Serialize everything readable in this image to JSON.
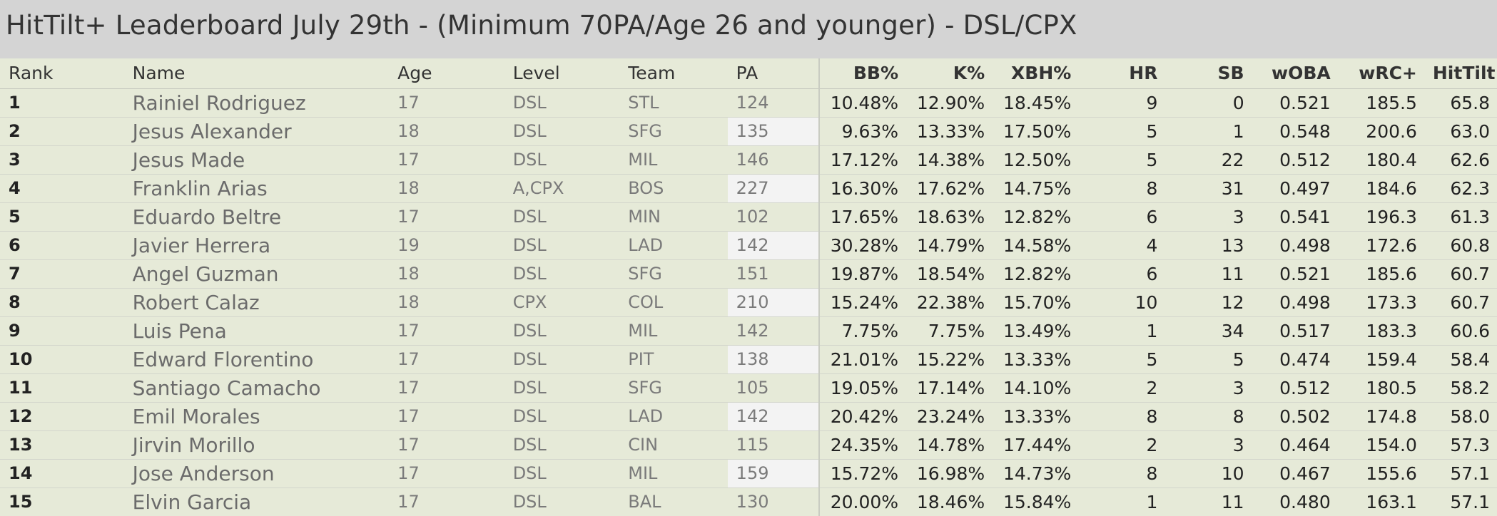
{
  "title": "HitTilt+ Leaderboard July 29th - (Minimum 70PA/Age 26 and younger) - DSL/CPX",
  "columns": {
    "rank": "Rank",
    "name": "Name",
    "age": "Age",
    "level": "Level",
    "team": "Team",
    "pa": "PA",
    "bb": "BB%",
    "k": "K%",
    "xbh": "XBH%",
    "hr": "HR",
    "sb": "SB",
    "woba": "wOBA",
    "wrc": "wRC+",
    "hittilt": "HitTilt+"
  },
  "rows": [
    {
      "rank": "1",
      "name": "Rainiel Rodriguez",
      "age": "17",
      "level": "DSL",
      "team": "STL",
      "pa": "124",
      "bb": "10.48%",
      "k": "12.90%",
      "xbh": "18.45%",
      "hr": "9",
      "sb": "0",
      "woba": "0.521",
      "wrc": "185.5",
      "hittilt": "65.8"
    },
    {
      "rank": "2",
      "name": "Jesus Alexander",
      "age": "18",
      "level": "DSL",
      "team": "SFG",
      "pa": "135",
      "bb": "9.63%",
      "k": "13.33%",
      "xbh": "17.50%",
      "hr": "5",
      "sb": "1",
      "woba": "0.548",
      "wrc": "200.6",
      "hittilt": "63.0"
    },
    {
      "rank": "3",
      "name": "Jesus Made",
      "age": "17",
      "level": "DSL",
      "team": "MIL",
      "pa": "146",
      "bb": "17.12%",
      "k": "14.38%",
      "xbh": "12.50%",
      "hr": "5",
      "sb": "22",
      "woba": "0.512",
      "wrc": "180.4",
      "hittilt": "62.6"
    },
    {
      "rank": "4",
      "name": "Franklin Arias",
      "age": "18",
      "level": "A,CPX",
      "team": "BOS",
      "pa": "227",
      "bb": "16.30%",
      "k": "17.62%",
      "xbh": "14.75%",
      "hr": "8",
      "sb": "31",
      "woba": "0.497",
      "wrc": "184.6",
      "hittilt": "62.3"
    },
    {
      "rank": "5",
      "name": "Eduardo Beltre",
      "age": "17",
      "level": "DSL",
      "team": "MIN",
      "pa": "102",
      "bb": "17.65%",
      "k": "18.63%",
      "xbh": "12.82%",
      "hr": "6",
      "sb": "3",
      "woba": "0.541",
      "wrc": "196.3",
      "hittilt": "61.3"
    },
    {
      "rank": "6",
      "name": "Javier Herrera",
      "age": "19",
      "level": "DSL",
      "team": "LAD",
      "pa": "142",
      "bb": "30.28%",
      "k": "14.79%",
      "xbh": "14.58%",
      "hr": "4",
      "sb": "13",
      "woba": "0.498",
      "wrc": "172.6",
      "hittilt": "60.8"
    },
    {
      "rank": "7",
      "name": "Angel Guzman",
      "age": "18",
      "level": "DSL",
      "team": "SFG",
      "pa": "151",
      "bb": "19.87%",
      "k": "18.54%",
      "xbh": "12.82%",
      "hr": "6",
      "sb": "11",
      "woba": "0.521",
      "wrc": "185.6",
      "hittilt": "60.7"
    },
    {
      "rank": "8",
      "name": "Robert Calaz",
      "age": "18",
      "level": "CPX",
      "team": "COL",
      "pa": "210",
      "bb": "15.24%",
      "k": "22.38%",
      "xbh": "15.70%",
      "hr": "10",
      "sb": "12",
      "woba": "0.498",
      "wrc": "173.3",
      "hittilt": "60.7"
    },
    {
      "rank": "9",
      "name": "Luis Pena",
      "age": "17",
      "level": "DSL",
      "team": "MIL",
      "pa": "142",
      "bb": "7.75%",
      "k": "7.75%",
      "xbh": "13.49%",
      "hr": "1",
      "sb": "34",
      "woba": "0.517",
      "wrc": "183.3",
      "hittilt": "60.6"
    },
    {
      "rank": "10",
      "name": "Edward Florentino",
      "age": "17",
      "level": "DSL",
      "team": "PIT",
      "pa": "138",
      "bb": "21.01%",
      "k": "15.22%",
      "xbh": "13.33%",
      "hr": "5",
      "sb": "5",
      "woba": "0.474",
      "wrc": "159.4",
      "hittilt": "58.4"
    },
    {
      "rank": "11",
      "name": "Santiago Camacho",
      "age": "17",
      "level": "DSL",
      "team": "SFG",
      "pa": "105",
      "bb": "19.05%",
      "k": "17.14%",
      "xbh": "14.10%",
      "hr": "2",
      "sb": "3",
      "woba": "0.512",
      "wrc": "180.5",
      "hittilt": "58.2"
    },
    {
      "rank": "12",
      "name": "Emil Morales",
      "age": "17",
      "level": "DSL",
      "team": "LAD",
      "pa": "142",
      "bb": "20.42%",
      "k": "23.24%",
      "xbh": "13.33%",
      "hr": "8",
      "sb": "8",
      "woba": "0.502",
      "wrc": "174.8",
      "hittilt": "58.0"
    },
    {
      "rank": "13",
      "name": "Jirvin Morillo",
      "age": "17",
      "level": "DSL",
      "team": "CIN",
      "pa": "115",
      "bb": "24.35%",
      "k": "14.78%",
      "xbh": "17.44%",
      "hr": "2",
      "sb": "3",
      "woba": "0.464",
      "wrc": "154.0",
      "hittilt": "57.3"
    },
    {
      "rank": "14",
      "name": "Jose Anderson",
      "age": "17",
      "level": "DSL",
      "team": "MIL",
      "pa": "159",
      "bb": "15.72%",
      "k": "16.98%",
      "xbh": "14.73%",
      "hr": "8",
      "sb": "10",
      "woba": "0.467",
      "wrc": "155.6",
      "hittilt": "57.1"
    },
    {
      "rank": "15",
      "name": "Elvin Garcia",
      "age": "17",
      "level": "DSL",
      "team": "BAL",
      "pa": "130",
      "bb": "20.00%",
      "k": "18.46%",
      "xbh": "15.84%",
      "hr": "1",
      "sb": "11",
      "woba": "0.480",
      "wrc": "163.1",
      "hittilt": "57.1"
    }
  ],
  "colors": {
    "header_bg": "#d4d4d4",
    "row_bg": "#e6ead8",
    "pa_band_bg": "#f3f3f3",
    "title_text": "#333333",
    "stat_text": "#222222",
    "muted_text": "#7a7a7a"
  }
}
